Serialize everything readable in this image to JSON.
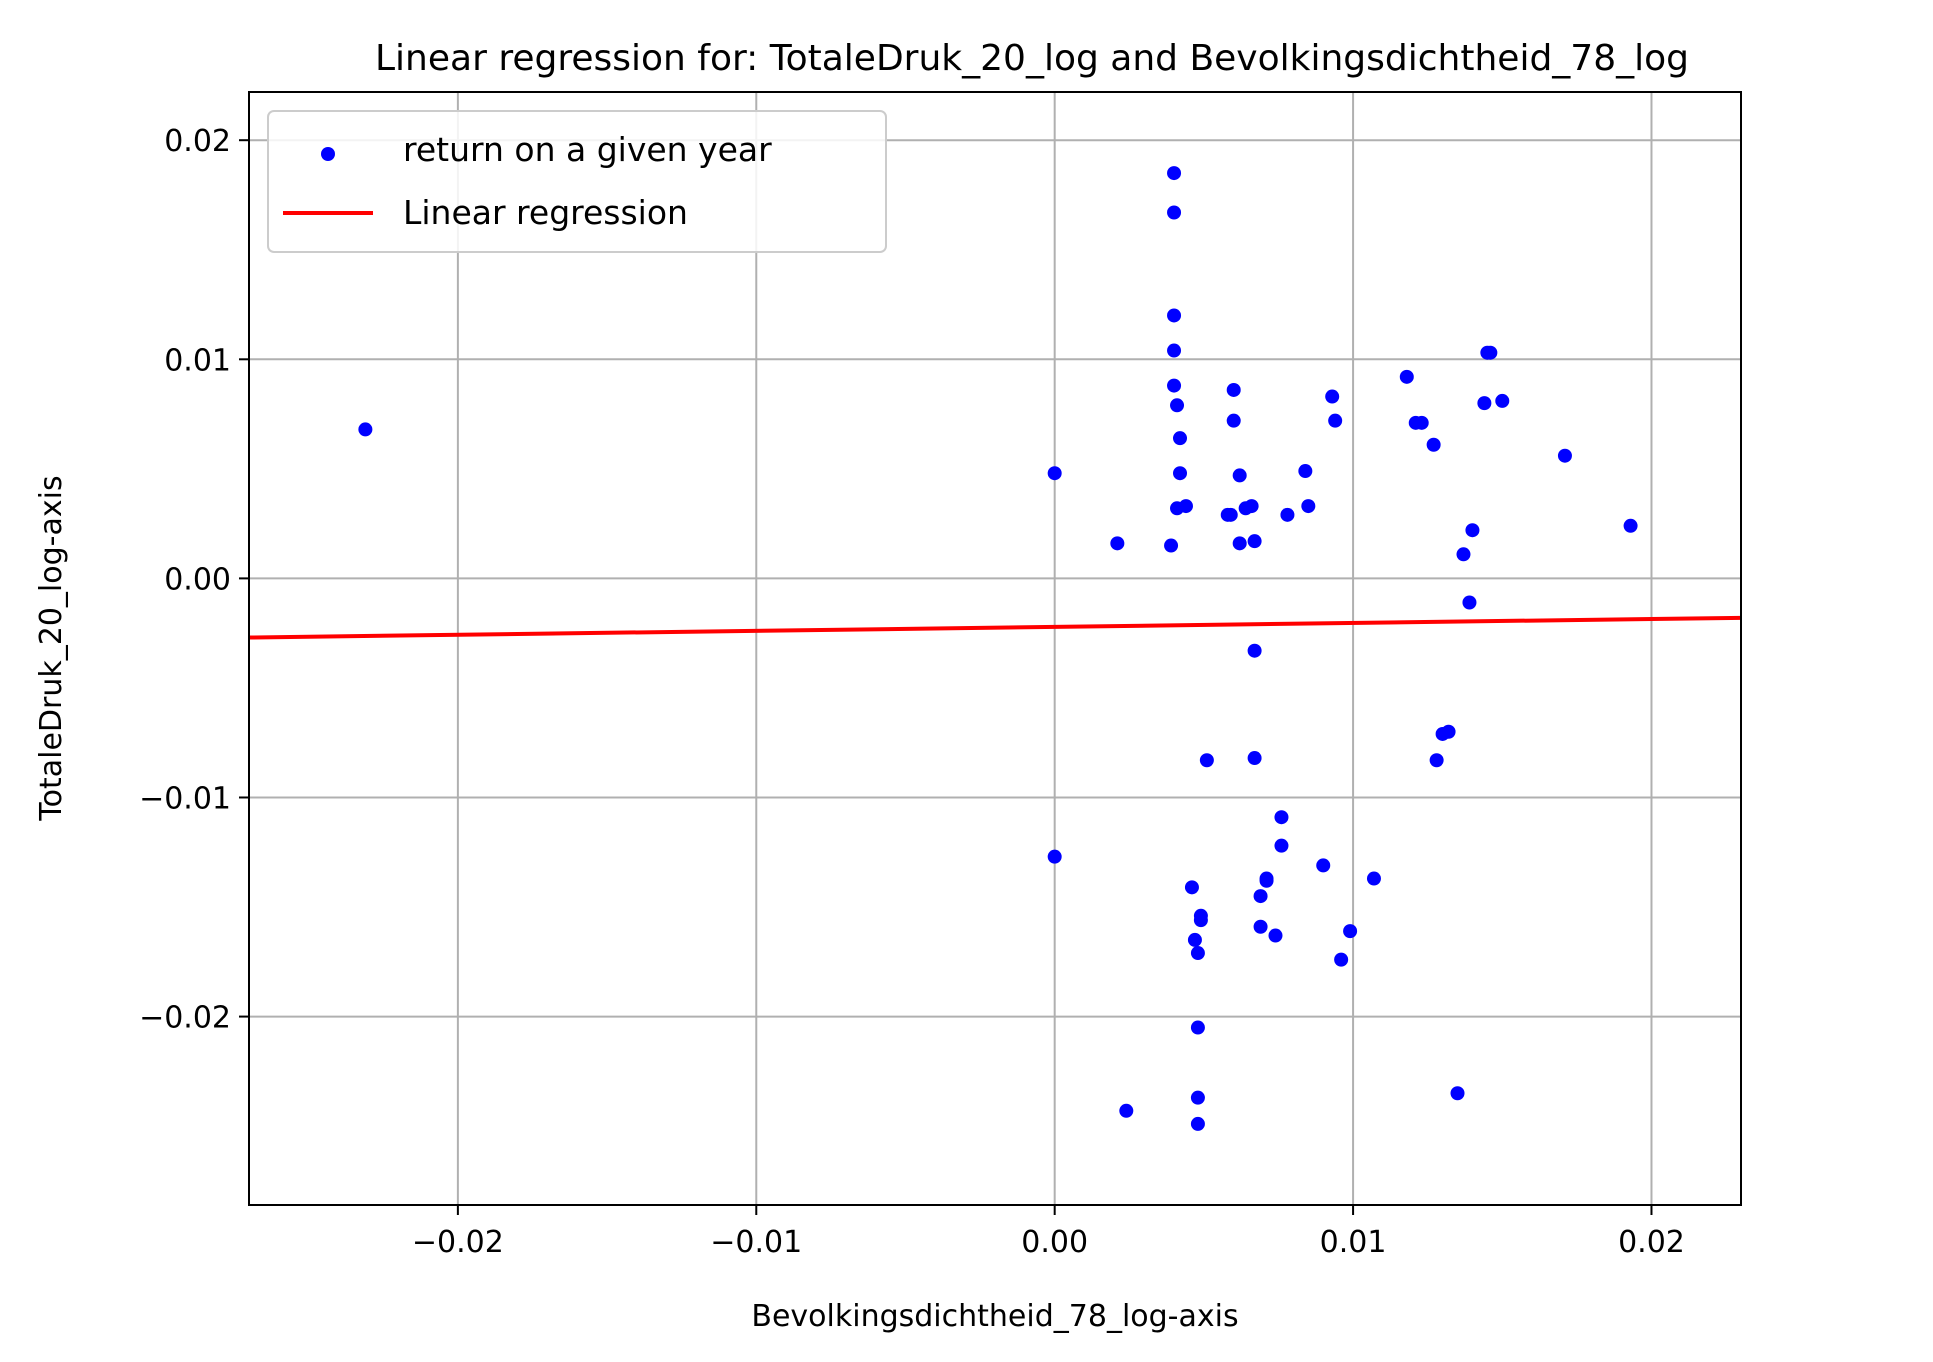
{
  "chart_data": {
    "type": "scatter",
    "title": "Linear regression for: TotaleDruk_20_log and Bevolkingsdichtheid_78_log",
    "xlabel": "Bevolkingsdichtheid_78_log-axis",
    "ylabel": "TotaleDruk_20_log-axis",
    "xlim": [
      -0.027,
      0.023
    ],
    "ylim": [
      -0.0286,
      0.0222
    ],
    "x_ticks": [
      -0.02,
      -0.01,
      0.0,
      0.01,
      0.02
    ],
    "x_tick_labels": [
      "−0.02",
      "−0.01",
      "0.00",
      "0.01",
      "0.02"
    ],
    "y_ticks": [
      0.02,
      0.01,
      0.0,
      -0.01,
      -0.02
    ],
    "y_tick_labels": [
      "0.02",
      "0.01",
      "0.00",
      "−0.01",
      "−0.02"
    ],
    "grid": true,
    "legend_position": "top-left",
    "series": [
      {
        "name": "return on a given year",
        "kind": "scatter",
        "color": "#0000ff",
        "points": [
          [
            -0.0231,
            0.0068
          ],
          [
            0.0,
            0.0048
          ],
          [
            0.0,
            -0.0127
          ],
          [
            0.0021,
            0.0016
          ],
          [
            0.0024,
            -0.0243
          ],
          [
            0.004,
            0.0185
          ],
          [
            0.004,
            0.0167
          ],
          [
            0.004,
            0.012
          ],
          [
            0.004,
            0.0104
          ],
          [
            0.004,
            0.0088
          ],
          [
            0.0041,
            0.0079
          ],
          [
            0.0042,
            0.0064
          ],
          [
            0.0042,
            0.0048
          ],
          [
            0.0041,
            0.0032
          ],
          [
            0.0044,
            0.0033
          ],
          [
            0.0039,
            0.0015
          ],
          [
            0.0046,
            -0.0141
          ],
          [
            0.0047,
            -0.0165
          ],
          [
            0.0049,
            -0.0154
          ],
          [
            0.0049,
            -0.0156
          ],
          [
            0.0048,
            -0.0171
          ],
          [
            0.0048,
            -0.0205
          ],
          [
            0.0048,
            -0.0237
          ],
          [
            0.0048,
            -0.0249
          ],
          [
            0.0051,
            -0.0083
          ],
          [
            0.0058,
            0.0029
          ],
          [
            0.0059,
            0.0029
          ],
          [
            0.006,
            0.0086
          ],
          [
            0.006,
            0.0072
          ],
          [
            0.0062,
            0.0047
          ],
          [
            0.0062,
            0.0016
          ],
          [
            0.0064,
            0.0032
          ],
          [
            0.0066,
            0.0033
          ],
          [
            0.0067,
            0.0017
          ],
          [
            0.0067,
            -0.0033
          ],
          [
            0.0067,
            -0.0082
          ],
          [
            0.0069,
            -0.0145
          ],
          [
            0.0069,
            -0.0159
          ],
          [
            0.0071,
            -0.0138
          ],
          [
            0.0071,
            -0.0137
          ],
          [
            0.0074,
            -0.0163
          ],
          [
            0.0076,
            -0.0109
          ],
          [
            0.0076,
            -0.0122
          ],
          [
            0.0078,
            0.0029
          ],
          [
            0.0084,
            0.0049
          ],
          [
            0.0085,
            0.0033
          ],
          [
            0.009,
            -0.0131
          ],
          [
            0.0093,
            0.0083
          ],
          [
            0.0094,
            0.0072
          ],
          [
            0.0096,
            -0.0174
          ],
          [
            0.0099,
            -0.0161
          ],
          [
            0.0107,
            -0.0137
          ],
          [
            0.0118,
            0.0092
          ],
          [
            0.0121,
            0.0071
          ],
          [
            0.0123,
            0.0071
          ],
          [
            0.0127,
            0.0061
          ],
          [
            0.0128,
            -0.0083
          ],
          [
            0.013,
            -0.0071
          ],
          [
            0.0132,
            -0.007
          ],
          [
            0.0135,
            -0.0235
          ],
          [
            0.0137,
            0.0011
          ],
          [
            0.0139,
            -0.0011
          ],
          [
            0.014,
            0.0022
          ],
          [
            0.0144,
            0.008
          ],
          [
            0.0145,
            0.0103
          ],
          [
            0.0146,
            0.0103
          ],
          [
            0.015,
            0.0081
          ],
          [
            0.0171,
            0.0056
          ],
          [
            0.0193,
            0.0024
          ]
        ]
      },
      {
        "name": "Linear regression",
        "kind": "line",
        "color": "#ff0000",
        "x": [
          -0.027,
          0.023
        ],
        "y": [
          -0.0027,
          -0.0018
        ]
      }
    ]
  }
}
